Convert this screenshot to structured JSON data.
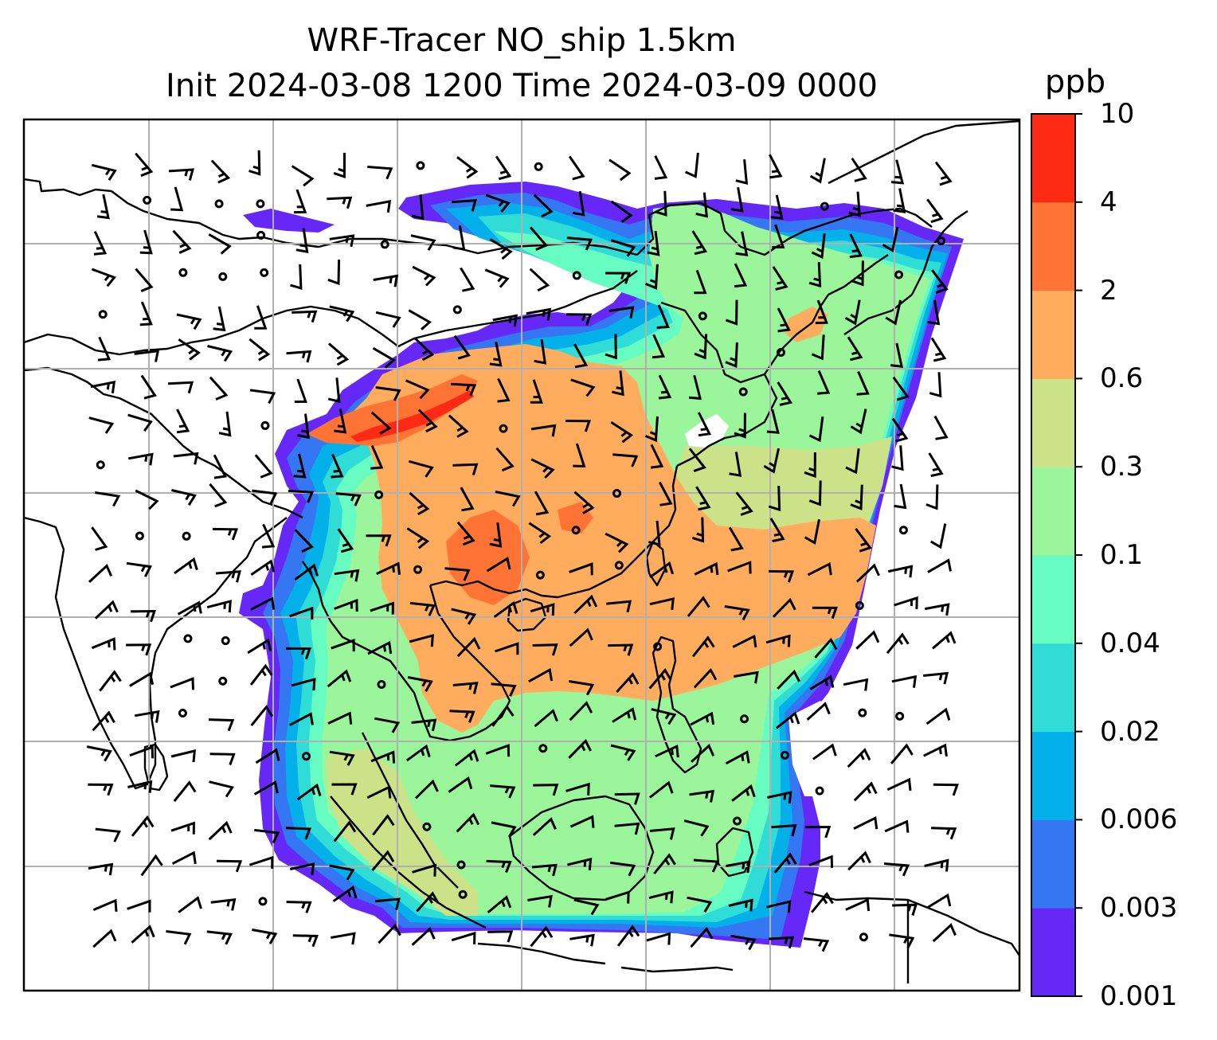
{
  "title": {
    "line1": "WRF-Tracer NO_ship 1.5km",
    "line2": "Init 2024-03-08 1200 Time 2024-03-09 0000"
  },
  "colorbar": {
    "label": "ppb",
    "levels": [
      "0.001",
      "0.003",
      "0.006",
      "0.02",
      "0.04",
      "0.1",
      "0.3",
      "0.6",
      "2",
      "4",
      "10"
    ],
    "colors": [
      "#6528f7",
      "#3576f2",
      "#04b0ea",
      "#2fdcd6",
      "#67fcc1",
      "#9bf59b",
      "#cce289",
      "#ffac5e",
      "#ff7435",
      "#ff2a13"
    ]
  },
  "map": {
    "background": "#ffffff",
    "coastline_color": "#000000",
    "gridline_color": "#b0b0b0",
    "wind_barbs": "black"
  }
}
